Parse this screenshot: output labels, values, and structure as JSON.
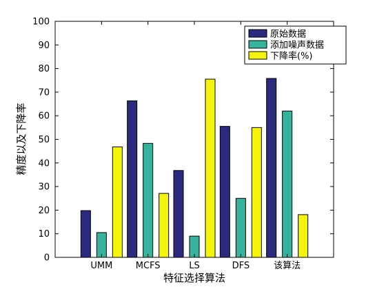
{
  "chart_data": {
    "type": "bar",
    "title": "",
    "xlabel": "特征选择算法",
    "ylabel": "精度以及下降率",
    "ylim": [
      0,
      100
    ],
    "yticks": [
      0,
      10,
      20,
      30,
      40,
      50,
      60,
      70,
      80,
      90,
      100
    ],
    "grid": false,
    "legend_position": "top-right",
    "categories": [
      "UMM",
      "MCFS",
      "LS",
      "DFS",
      "该算法"
    ],
    "series": [
      {
        "name": "原始数据",
        "color": "#2b2a7e",
        "values": [
          19.8,
          66.3,
          36.8,
          55.5,
          75.8
        ]
      },
      {
        "name": "添加噪声数据",
        "color": "#36b39c",
        "values": [
          10.5,
          48.3,
          9.0,
          25.0,
          62.0
        ]
      },
      {
        "name": "下降率(%)",
        "color": "#f4f40a",
        "values": [
          46.8,
          27.1,
          75.5,
          55.0,
          18.1
        ]
      }
    ]
  }
}
